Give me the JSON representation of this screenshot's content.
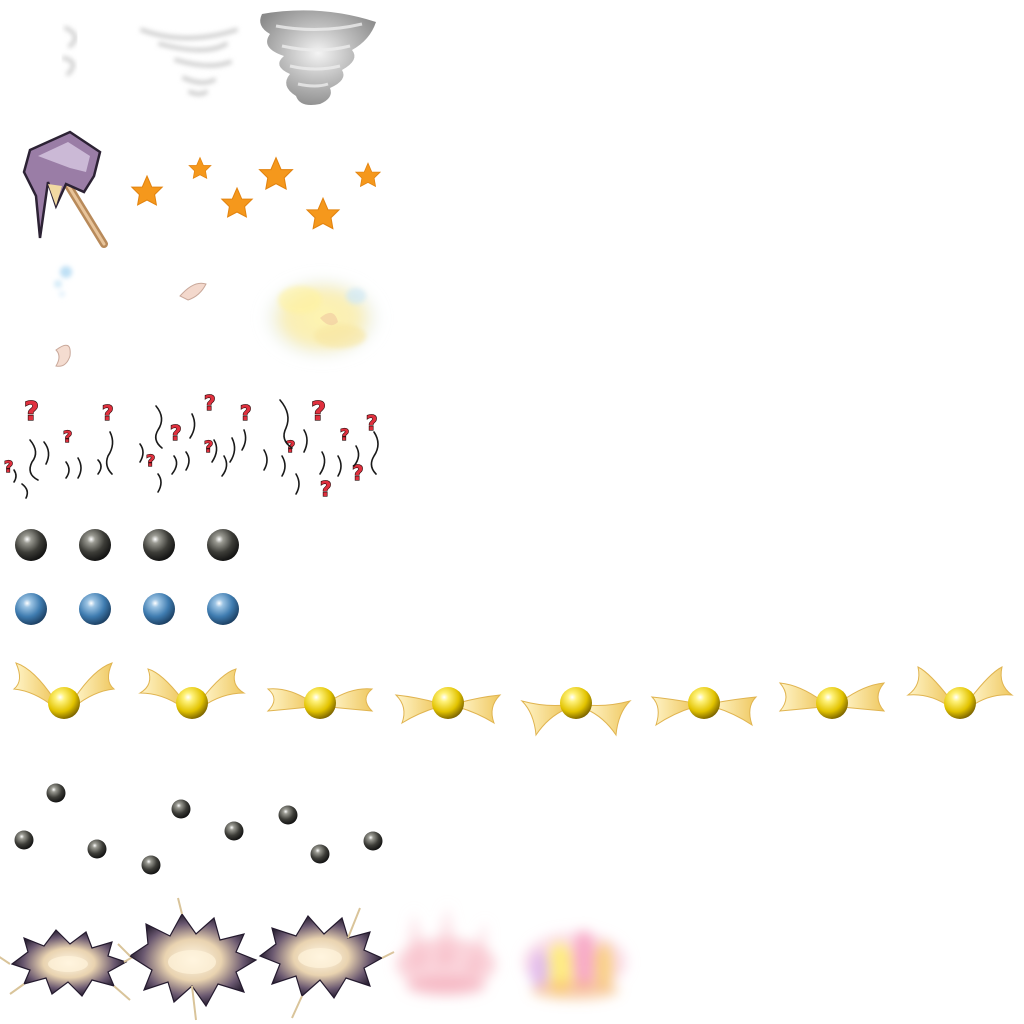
{
  "sprite_sheet": {
    "description_none": "",
    "rows": [
      {
        "name": "whirlwind-row",
        "frames": 3
      },
      {
        "name": "hammer-star-row",
        "frames": 1,
        "stars": 6
      },
      {
        "name": "feather-sparkle-row",
        "frames": 3
      },
      {
        "name": "question-mark-row",
        "frames": 3
      },
      {
        "name": "dark-orb-row",
        "frames": 4
      },
      {
        "name": "blue-orb-row",
        "frames": 4
      },
      {
        "name": "winged-golden-orb-row",
        "frames": 8
      },
      {
        "name": "scattered-orb-row",
        "frames": 10
      },
      {
        "name": "burst-row",
        "frames": 5
      }
    ],
    "question_glyph": "?",
    "colors": {
      "star": "#f5981c",
      "question": "#e0303e",
      "dark_orb": "#4a4a44",
      "blue_orb": "#4a86b8",
      "gold_orb": "#e8c800",
      "wing": "#f6dc8a"
    }
  }
}
